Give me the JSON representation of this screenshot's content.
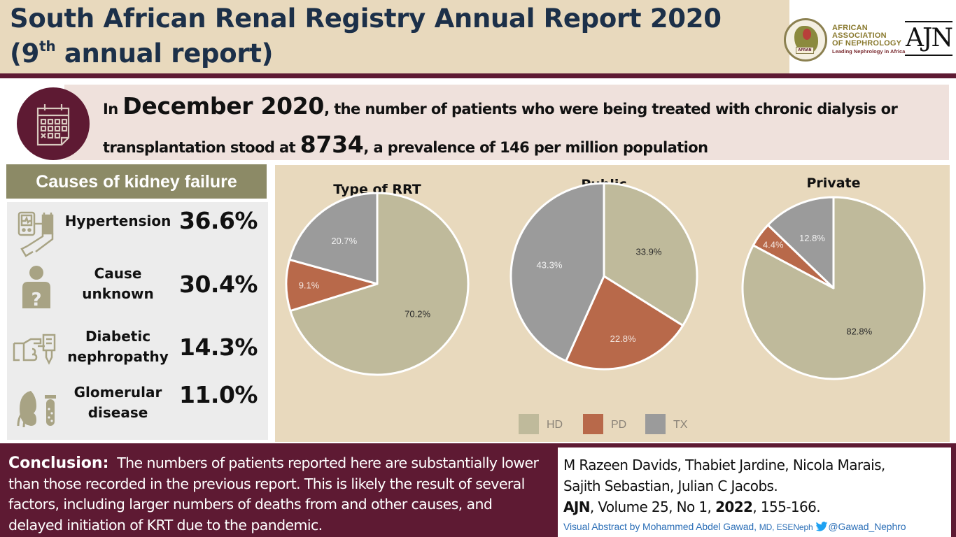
{
  "header": {
    "title_line1": "South African Renal Registry Annual Report 2020",
    "title_line2_pre": "(9",
    "title_line2_sup": "th",
    "title_line2_post": " annual report)",
    "logos": {
      "afran_lines": [
        "AFRICAN",
        "ASSOCIATION",
        "OF NEPHROLOGY"
      ],
      "afran_tagline": "Leading Nephrology in Africa",
      "afran_badge": "AFRAN",
      "ajn": "AJN"
    }
  },
  "banner": {
    "icon": "calendar-icon",
    "prefix": "In ",
    "date": "December 2020",
    "text1": ", the number of patients who were being treated with chronic dialysis or",
    "text2_pre": "transplantation stood at ",
    "count": "8734",
    "text2_post": ", a prevalence of 146 per million population"
  },
  "causes": {
    "title": "Causes of kidney failure",
    "items": [
      {
        "label": "Hypertension",
        "value": "36.6%",
        "icon": "blood-pressure-monitor-icon"
      },
      {
        "label": "Cause unknown",
        "value": "30.4%",
        "icon": "person-question-icon"
      },
      {
        "label": "Diabetic nephropathy",
        "value": "14.3%",
        "icon": "glucose-test-icon"
      },
      {
        "label": "Glomerular disease",
        "value": "11.0%",
        "icon": "kidney-test-tube-icon"
      }
    ]
  },
  "colors": {
    "HD": "#bfba9b",
    "PD": "#b8694a",
    "TX": "#9b9b9b",
    "maroon": "#5e1a33",
    "olive": "#8c8a66",
    "beige": "#e8d9bd"
  },
  "chart_data": [
    {
      "type": "pie",
      "title": "Type of RRT",
      "categories": [
        "HD",
        "PD",
        "TX"
      ],
      "values": [
        70.2,
        9.1,
        20.7
      ],
      "labels": [
        "70.2%",
        "9.1%",
        "20.7%"
      ],
      "legend": [
        "HD",
        "PD",
        "TX"
      ],
      "legend_position": "bottom"
    },
    {
      "type": "pie",
      "title": "Public",
      "categories": [
        "HD",
        "PD",
        "TX"
      ],
      "values": [
        33.9,
        22.8,
        43.3
      ],
      "labels": [
        "33.9%",
        "22.8%",
        "43.3%"
      ],
      "legend": [
        "HD",
        "PD",
        "TX"
      ],
      "legend_position": "bottom"
    },
    {
      "type": "pie",
      "title": "Private",
      "categories": [
        "HD",
        "PD",
        "TX"
      ],
      "values": [
        82.8,
        4.4,
        12.8
      ],
      "labels": [
        "82.8%",
        "4.4%",
        "12.8%"
      ],
      "legend": [
        "HD",
        "PD",
        "TX"
      ],
      "legend_position": "bottom"
    }
  ],
  "legend": [
    "HD",
    "PD",
    "TX"
  ],
  "conclusion": {
    "lead": "Conclusion:",
    "text": "  The numbers of patients reported here are substantially lower than those recorded in the previous report. This is likely the result of several factors, including larger numbers of deaths from and other causes, and delayed initiation of KRT due to the pandemic."
  },
  "citation": {
    "authors1": "M Razeen Davids, Thabiet Jardine, Nicola Marais,",
    "authors2": "Sajith Sebastian, Julian C Jacobs.",
    "journal": "AJN",
    "ref_mid": ", Volume 25, No 1, ",
    "year": "2022",
    "pages": ", 155-166.",
    "credit_pre": "Visual Abstract by Mohammed Abdel Gawad, ",
    "credit_deg": "MD, ESENeph",
    "twitter": "@Gawad_Nephro"
  }
}
